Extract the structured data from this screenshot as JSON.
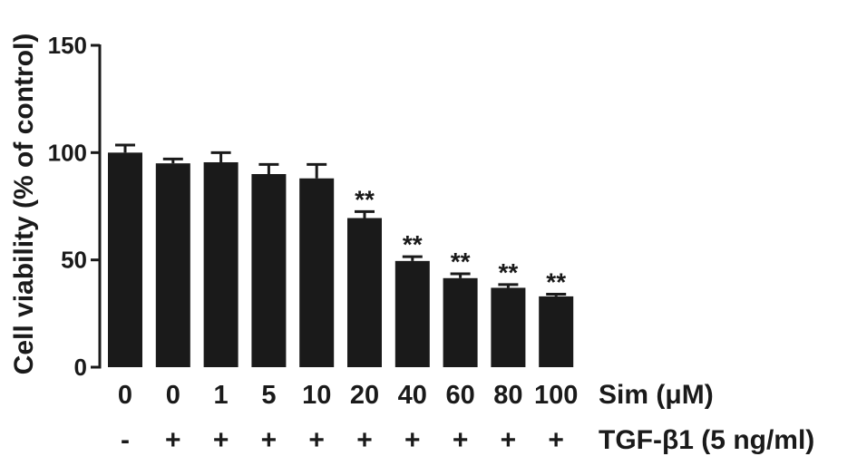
{
  "chart_data": {
    "type": "bar",
    "ylabel": "Cell viability (% of control)",
    "ylim": [
      0,
      150
    ],
    "yticks": [
      "0",
      "50",
      "100",
      "150"
    ],
    "grid": false,
    "categories": [
      "0",
      "0",
      "1",
      "5",
      "10",
      "20",
      "40",
      "60",
      "80",
      "100"
    ],
    "row_labels": {
      "sim": "Sim (μM)",
      "tgf": "TGF-β1 (5 ng/ml)"
    },
    "tgf_signs": [
      "-",
      "+",
      "+",
      "+",
      "+",
      "+",
      "+",
      "+",
      "+",
      "+"
    ],
    "values": [
      100,
      95,
      95.5,
      90,
      88,
      69.5,
      49.5,
      41.5,
      37,
      33
    ],
    "errors": [
      3.5,
      2,
      4.5,
      4.5,
      6.5,
      3,
      2,
      2,
      1.5,
      1
    ],
    "significance": [
      "",
      "",
      "",
      "",
      "",
      "**",
      "**",
      "**",
      "**",
      "**"
    ],
    "colors": {
      "bar": "#1a1a1a"
    }
  }
}
